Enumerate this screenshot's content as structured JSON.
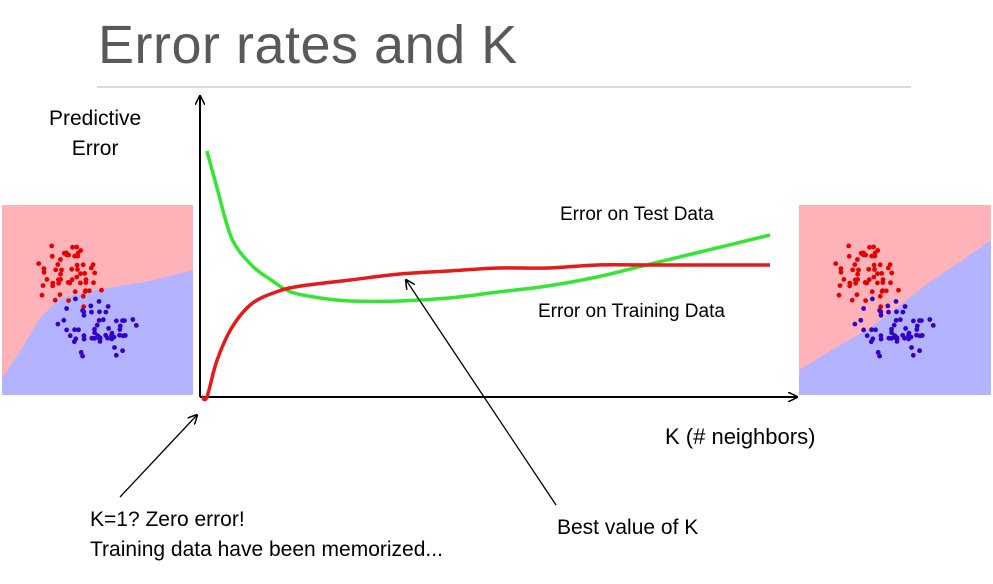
{
  "slide": {
    "title": "Error rates and K"
  },
  "chart_data": {
    "type": "line",
    "ylabel": [
      "Predictive",
      "Error"
    ],
    "xlabel": "K (# neighbors)",
    "series": [
      {
        "name": "Error on Test Data",
        "color": "#33e633",
        "x": [
          1,
          3,
          6,
          10,
          14,
          18,
          24,
          30,
          40,
          50,
          60,
          70,
          80,
          90,
          100,
          115
        ],
        "y": [
          0.82,
          0.7,
          0.53,
          0.44,
          0.39,
          0.35,
          0.33,
          0.32,
          0.32,
          0.33,
          0.35,
          0.37,
          0.4,
          0.44,
          0.48,
          0.54
        ]
      },
      {
        "name": "Error on Training Data",
        "color": "#e61a1a",
        "x": [
          0,
          1,
          3,
          6,
          10,
          15,
          20,
          30,
          40,
          50,
          60,
          70,
          80,
          90,
          100,
          115
        ],
        "y": [
          0.0,
          0.0,
          0.12,
          0.23,
          0.31,
          0.35,
          0.37,
          0.39,
          0.41,
          0.42,
          0.43,
          0.43,
          0.44,
          0.44,
          0.44,
          0.44
        ]
      }
    ],
    "xlim": [
      0,
      120
    ],
    "ylim": [
      0,
      1
    ]
  },
  "annotations": {
    "k1_note": [
      "K=1?  Zero error!",
      "Training data have been memorized..."
    ],
    "best_k": "Best value of K"
  },
  "colors": {
    "region_red": "#ffb3b8",
    "region_blue": "#b3b3ff",
    "point_red": "#e60000",
    "point_blue": "#3300cc"
  }
}
